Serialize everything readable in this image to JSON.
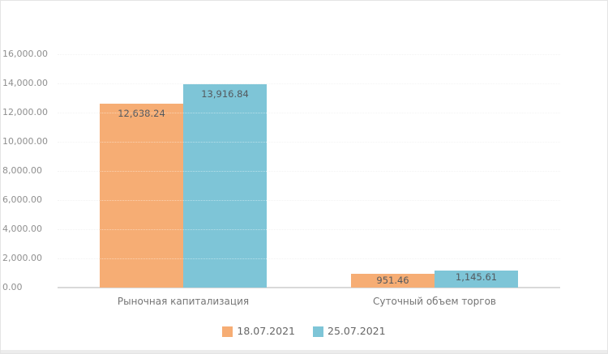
{
  "chart_data": {
    "type": "bar",
    "title": "",
    "xlabel": "",
    "ylabel": "",
    "grid": true,
    "legend_position": "bottom",
    "categories": [
      "Рыночная капитализация",
      "Суточный объем торгов"
    ],
    "series": [
      {
        "name": "18.07.2021",
        "color": "#F6AD74",
        "values": [
          12638.24,
          951.46
        ],
        "labels": [
          "12,638.24",
          "951.46"
        ]
      },
      {
        "name": "25.07.2021",
        "color": "#7EC5D7",
        "values": [
          13916.84,
          1145.61
        ],
        "labels": [
          "13,916.84",
          "1,145.61"
        ]
      }
    ],
    "y_axis": {
      "min": 0,
      "max": 16000,
      "step": 2000,
      "tick_labels": [
        "0.00",
        "2,000.00",
        "4,000.00",
        "6,000.00",
        "8,000.00",
        "10,000.00",
        "12,000.00",
        "14,000.00",
        "16,000.00"
      ]
    }
  },
  "styles": {
    "bar_label_color": "#54595E",
    "tick_color": "#8F8F8F",
    "category_color": "#757575",
    "legend_text_color": "#666666",
    "grid_color": "#E9E9E9",
    "axis_line_color": "#D9D9D9",
    "card_border_color": "#E4E4E4"
  }
}
